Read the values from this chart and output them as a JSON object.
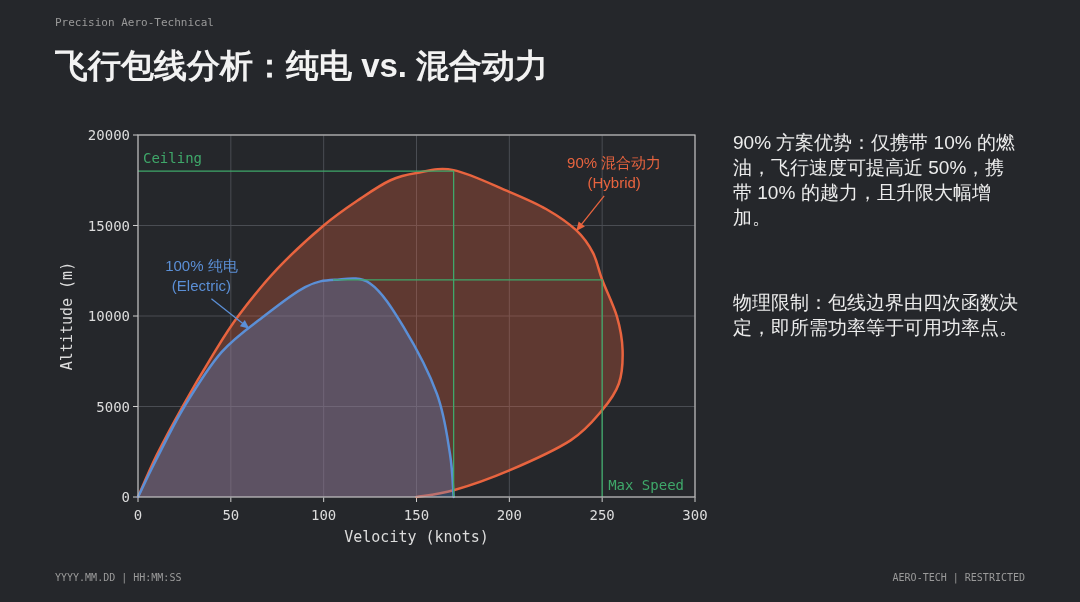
{
  "chart_data": {
    "type": "area",
    "title": "飞行包线分析：纯电 vs. 混合动力",
    "xlabel": "Velocity (knots)",
    "ylabel": "Altitude (m)",
    "xlim": [
      0,
      300
    ],
    "xticks": [
      0,
      50,
      100,
      150,
      200,
      250,
      300
    ],
    "ylim": [
      0,
      20000
    ],
    "yticks": [
      0,
      5000,
      10000,
      15000,
      20000
    ],
    "grid": true,
    "series": [
      {
        "color": "#e8643f",
        "x": [
          0,
          10,
          24,
          40,
          54,
          75,
          100,
          120,
          136,
          150,
          170,
          200,
          220,
          236,
          245,
          250,
          258,
          261,
          259,
          250,
          233,
          200,
          170,
          150
        ],
        "values": [
          0,
          2300,
          5000,
          7800,
          10000,
          12600,
          15000,
          16500,
          17500,
          17900,
          18060,
          16860,
          15900,
          14740,
          13500,
          12000,
          9950,
          8100,
          6270,
          4800,
          3130,
          1470,
          370,
          0
        ]
      },
      {
        "color": "#5b8fd6",
        "x": [
          0,
          10,
          25,
          45,
          68,
          90,
          106,
          125,
          143,
          161,
          168,
          170
        ],
        "values": [
          0,
          2100,
          5000,
          8000,
          10000,
          11600,
          12000,
          11800,
          9400,
          5700,
          2400,
          0
        ]
      },
      {
        "type": "line",
        "color": "#3fa86a",
        "x": [
          0,
          170,
          170
        ],
        "values": [
          18000,
          18000,
          0
        ]
      },
      {
        "type": "line",
        "color": "#3fa86a",
        "x": [
          105,
          250,
          250
        ],
        "values": [
          12000,
          12000,
          0
        ]
      }
    ],
    "annotations": [
      "Precision Aero-Technical",
      "90% 方案优势：仅携带 10% 的燃油，飞行速度可提高近 50%，携带 10% 的越力，且升限大幅增加。",
      "物理限制：包线边界由四次函数决定，即所需功率等于可用功率点。",
      "YYYY.MM.DD | HH:MM:SS",
      "AERO-TECH | RESTRICTED",
      {
        "text": "100% 纯电\n(Electric)",
        "x": 60,
        "y": 9300
      },
      {
        "text": "90% 混合动力\n(Hybrid)",
        "x": 236,
        "y": 14700
      },
      {
        "text": "Ceiling",
        "x": 0,
        "y": 18000
      },
      {
        "text": "Max Speed",
        "x": 250,
        "y": 0
      }
    ]
  }
}
